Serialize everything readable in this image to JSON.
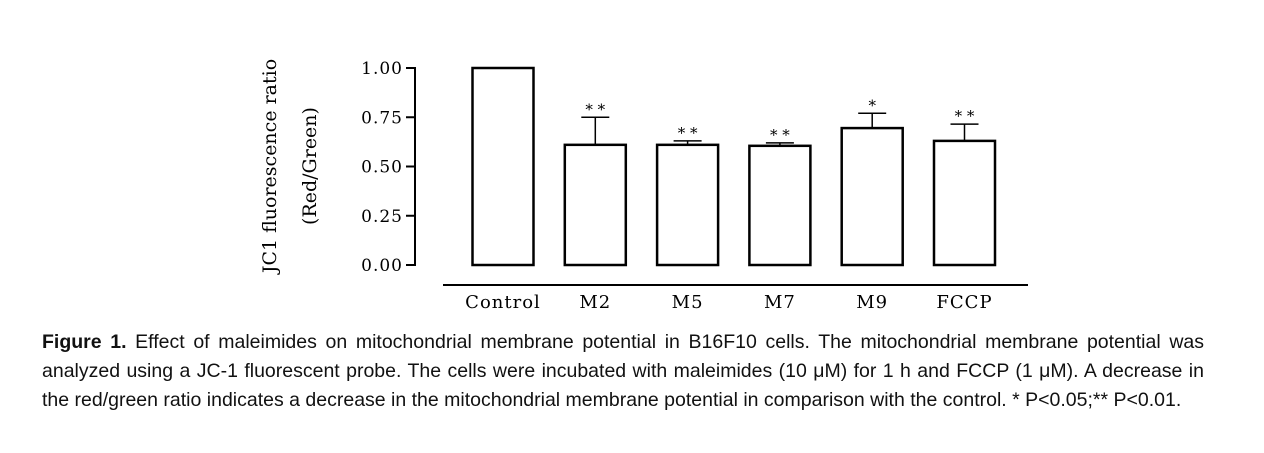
{
  "chart_data": {
    "type": "bar",
    "title": "",
    "xlabel": "",
    "ylabel": [
      "JC1 fluorescence ratio",
      "(Red/Green)"
    ],
    "categories": [
      "Control",
      "M2",
      "M5",
      "M7",
      "M9",
      "FCCP"
    ],
    "values": [
      1.0,
      0.61,
      0.61,
      0.605,
      0.695,
      0.63
    ],
    "errors": [
      0.0,
      0.14,
      0.02,
      0.015,
      0.075,
      0.085
    ],
    "significance": [
      "",
      "* *",
      "* *",
      "* *",
      "*",
      "* *"
    ],
    "yticks": [
      "0.00",
      "0.25",
      "0.50",
      "0.75",
      "1.00"
    ],
    "ylim": [
      0,
      1.0
    ],
    "bar_color": "#ffffff",
    "line_color": "#000000"
  },
  "caption": {
    "label": "Figure 1.",
    "text": " Effect of maleimides on mitochondrial membrane potential in B16F10 cells. The mitochondrial membrane potential was analyzed using a JC-1 fluorescent probe. The cells were incubated with maleimides (10 μM) for 1 h and FCCP (1 μM). A decrease in the red/green ratio indicates a decrease in the mitochondrial membrane potential in comparison with the control. * P<0.05;** P<0.01."
  }
}
